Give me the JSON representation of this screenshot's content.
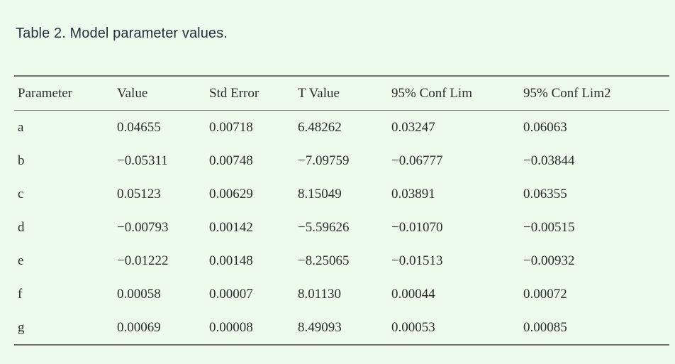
{
  "colors": {
    "background": "#eefaee",
    "title_text": "#25313a",
    "table_text": "#2d2d2d",
    "rule": "#707070"
  },
  "table": {
    "title": "Table 2. Model parameter values.",
    "columns": [
      "Parameter",
      "Value",
      "Std Error",
      "T Value",
      "95% Conf Lim",
      "95% Conf Lim2"
    ],
    "rows": [
      [
        "a",
        "0.04655",
        "0.00718",
        "6.48262",
        "0.03247",
        "0.06063"
      ],
      [
        "b",
        "−0.05311",
        "0.00748",
        "−7.09759",
        "−0.06777",
        "−0.03844"
      ],
      [
        "c",
        "0.05123",
        "0.00629",
        "8.15049",
        "0.03891",
        "0.06355"
      ],
      [
        "d",
        "−0.00793",
        "0.00142",
        "−5.59626",
        "−0.01070",
        "−0.00515"
      ],
      [
        "e",
        "−0.01222",
        "0.00148",
        "−8.25065",
        "−0.01513",
        "−0.00932"
      ],
      [
        "f",
        "0.00058",
        "0.00007",
        "8.01130",
        "0.00044",
        "0.00072"
      ],
      [
        "g",
        "0.00069",
        "0.00008",
        "8.49093",
        "0.00053",
        "0.00085"
      ]
    ]
  }
}
